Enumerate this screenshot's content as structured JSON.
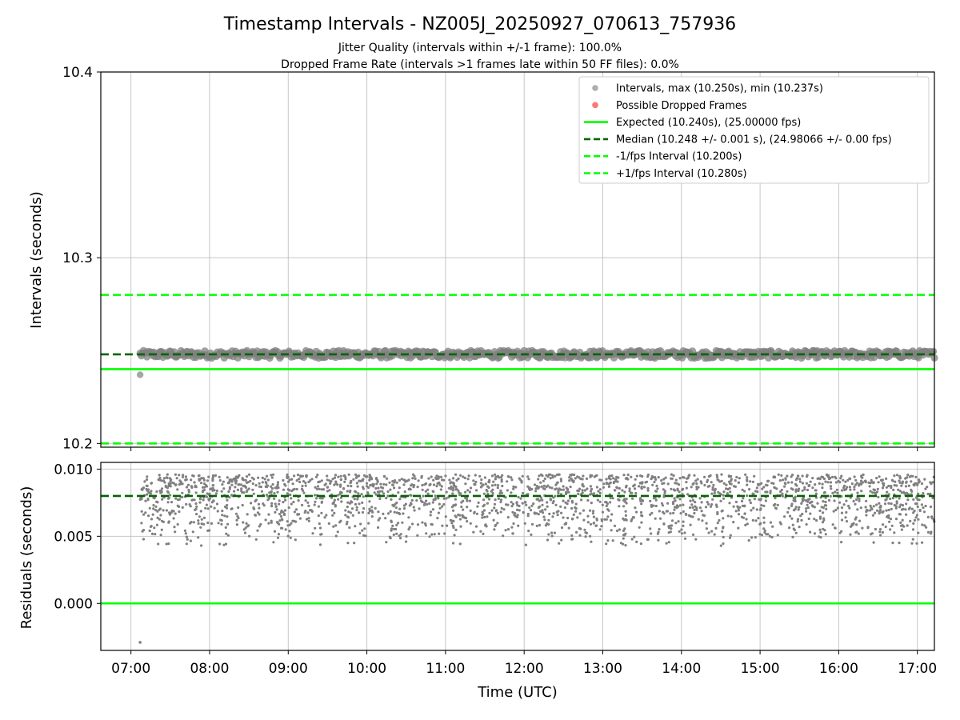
{
  "figure": {
    "title": "Timestamp Intervals - NZ005J_20250927_070613_757936",
    "subtitle_1": "Jitter Quality (intervals within +/-1 frame): 100.0%",
    "subtitle_2": "Dropped Frame Rate (intervals >1 frames late within 50 FF files): 0.0%"
  },
  "chart_data": [
    {
      "type": "scatter",
      "panel": "intervals",
      "xlabel": "",
      "ylabel": "Intervals (seconds)",
      "x_axis": "time (UTC, hours)",
      "xlim": [
        "06:37",
        "17:13"
      ],
      "ylim": [
        10.198,
        10.4
      ],
      "yticks": [
        "10.2",
        "10.3",
        "10.4"
      ],
      "grid": true,
      "legend_position": "upper right",
      "legend": [
        {
          "label": "Intervals, max (10.250s), min (10.237s)",
          "kind": "marker",
          "color": "#a6a6a6"
        },
        {
          "label": "Possible Dropped Frames",
          "kind": "marker",
          "color": "#ff6666"
        },
        {
          "label": "Expected (10.240s), (25.00000 fps)",
          "kind": "solid",
          "color": "#00ff00"
        },
        {
          "label": "Median (10.248 +/- 0.001 s), (24.98066 +/- 0.00 fps)",
          "kind": "dashed",
          "color": "#006400"
        },
        {
          "label": "-1/fps Interval (10.200s)",
          "kind": "dashed",
          "color": "#00ff00"
        },
        {
          "label": "+1/fps Interval (10.280s)",
          "kind": "dashed",
          "color": "#00ff00"
        }
      ],
      "series": [
        {
          "name": "Intervals, max (10.250s), min (10.237s)",
          "x_range": [
            "07:07",
            "17:13"
          ],
          "y_band": [
            10.246,
            10.25
          ],
          "outlier": {
            "x": "07:07",
            "y": 10.237
          },
          "color": "#808080"
        }
      ],
      "hlines": [
        {
          "name": "Expected",
          "y": 10.24,
          "style": "solid",
          "color": "#00ff00"
        },
        {
          "name": "Median",
          "y": 10.248,
          "style": "dashed",
          "color": "#006400"
        },
        {
          "name": "-1/fps Interval",
          "y": 10.2,
          "style": "dashed",
          "color": "#00ff00"
        },
        {
          "name": "+1/fps Interval",
          "y": 10.28,
          "style": "dashed",
          "color": "#00ff00"
        }
      ]
    },
    {
      "type": "scatter",
      "panel": "residuals",
      "xlabel": "Time (UTC)",
      "ylabel": "Residuals (seconds)",
      "xlim": [
        "06:37",
        "17:13"
      ],
      "xticks": [
        "07:00",
        "08:00",
        "09:00",
        "10:00",
        "11:00",
        "12:00",
        "13:00",
        "14:00",
        "15:00",
        "16:00",
        "17:00"
      ],
      "ylim": [
        -0.0035,
        0.0105
      ],
      "yticks": [
        "0.000",
        "0.005",
        "0.010"
      ],
      "grid": true,
      "series": [
        {
          "name": "",
          "x_range": [
            "07:07",
            "17:13"
          ],
          "y_band": [
            0.0042,
            0.0096
          ],
          "outlier": {
            "x": "07:07",
            "y": -0.0029
          },
          "color": "#808080"
        }
      ],
      "hlines": [
        {
          "name": "Expected",
          "y": 0.0,
          "style": "solid",
          "color": "#00ff00"
        },
        {
          "name": "Median",
          "y": 0.008,
          "style": "dashed",
          "color": "#006400"
        }
      ]
    }
  ]
}
